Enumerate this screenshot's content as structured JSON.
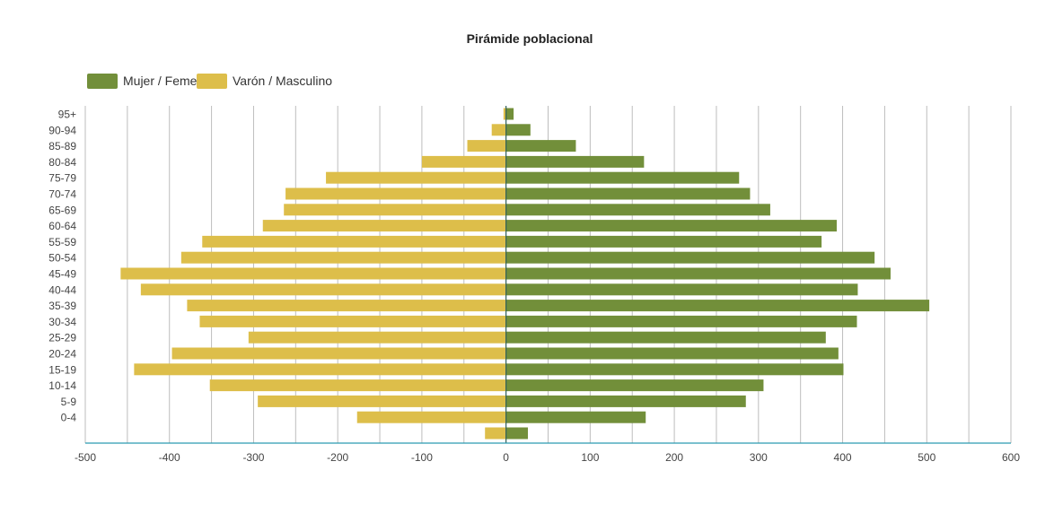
{
  "chart_data": {
    "type": "bar",
    "orientation": "horizontal",
    "stacked": true,
    "title": "Pirámide poblacional",
    "xlabel": "",
    "ylabel": "",
    "xlim": [
      -500,
      600
    ],
    "x_ticks": [
      -500,
      -400,
      -300,
      -200,
      -100,
      0,
      100,
      200,
      300,
      400,
      500,
      600
    ],
    "grid_step": 50,
    "grid": true,
    "legend_position": "top-left",
    "categories": [
      "95+",
      "90-94",
      "85-89",
      "80-84",
      "75-79",
      "70-74",
      "65-69",
      "60-64",
      "55-59",
      "50-54",
      "45-49",
      "40-44",
      "35-39",
      "30-34",
      "25-29",
      "20-24",
      "15-19",
      "10-14",
      "5-9",
      "0-4",
      ""
    ],
    "series": [
      {
        "name": "Mujer / Femenino",
        "color": "#728F3A",
        "values": [
          9,
          29,
          83,
          164,
          277,
          290,
          314,
          393,
          375,
          438,
          457,
          418,
          503,
          417,
          380,
          395,
          401,
          306,
          285,
          166,
          26
        ]
      },
      {
        "name": "Varón / Masculino",
        "color": "#DDBE4A",
        "values": [
          -3,
          -17,
          -46,
          -100,
          -214,
          -262,
          -264,
          -289,
          -361,
          -386,
          -458,
          -434,
          -379,
          -364,
          -306,
          -397,
          -442,
          -352,
          -295,
          -177,
          -25
        ]
      }
    ]
  }
}
